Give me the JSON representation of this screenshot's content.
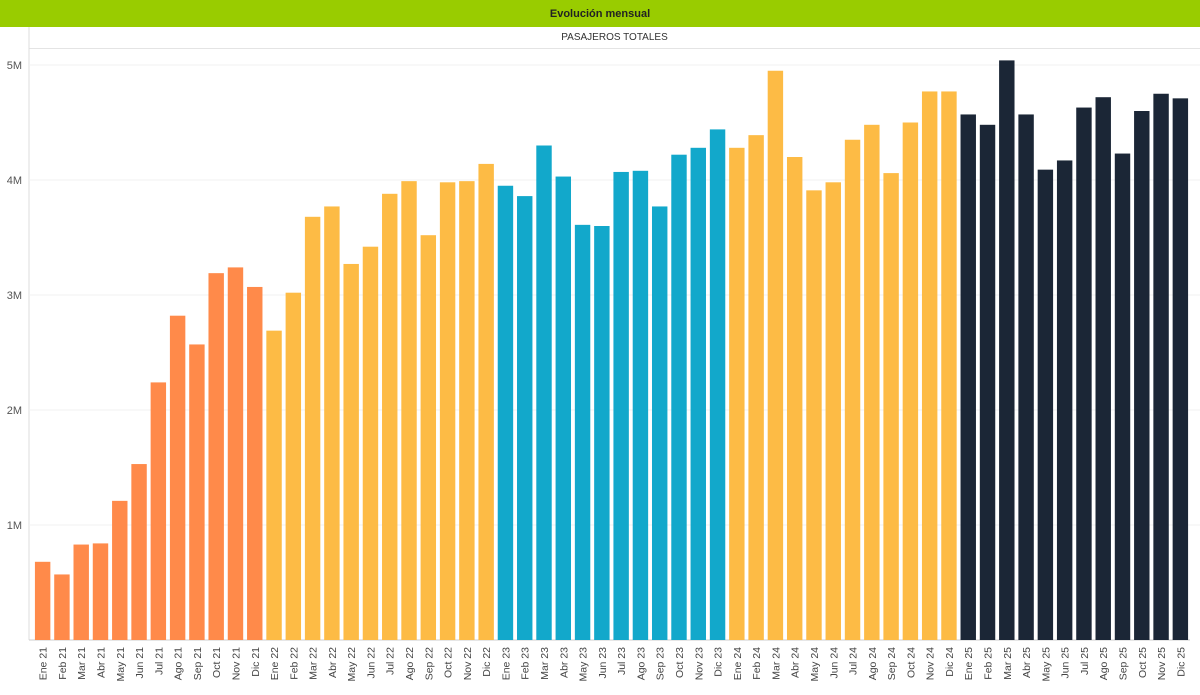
{
  "header": {
    "title": "Evolución mensual"
  },
  "chart_data": {
    "type": "bar",
    "title": "PASAJEROS TOTALES",
    "xlabel": "",
    "ylabel": "",
    "ylim": [
      0,
      5000000
    ],
    "yticks": [
      {
        "v": 1000000,
        "label": "1M"
      },
      {
        "v": 2000000,
        "label": "2M"
      },
      {
        "v": 3000000,
        "label": "3M"
      },
      {
        "v": 4000000,
        "label": "4M"
      },
      {
        "v": 5000000,
        "label": "5M"
      }
    ],
    "grid": true,
    "year_colors": {
      "21": "#ff8a4a",
      "22": "#fdbb45",
      "23": "#12a8cb",
      "24": "#fdbb45",
      "25": "#1b2636"
    },
    "categories": [
      "Ene 21",
      "Feb 21",
      "Mar 21",
      "Abr 21",
      "May 21",
      "Jun 21",
      "Jul 21",
      "Ago 21",
      "Sep 21",
      "Oct 21",
      "Nov 21",
      "Dic 21",
      "Ene 22",
      "Feb 22",
      "Mar 22",
      "Abr 22",
      "May 22",
      "Jun 22",
      "Jul 22",
      "Ago 22",
      "Sep 22",
      "Oct 22",
      "Nov 22",
      "Dic 22",
      "Ene 23",
      "Feb 23",
      "Mar 23",
      "Abr 23",
      "May 23",
      "Jun 23",
      "Jul 23",
      "Ago 23",
      "Sep 23",
      "Oct 23",
      "Nov 23",
      "Dic 23",
      "Ene 24",
      "Feb 24",
      "Mar 24",
      "Abr 24",
      "May 24",
      "Jun 24",
      "Jul 24",
      "Ago 24",
      "Sep 24",
      "Oct 24",
      "Nov 24",
      "Dic 24",
      "Ene 25",
      "Feb 25",
      "Mar 25",
      "Abr 25",
      "May 25",
      "Jun 25",
      "Jul 25",
      "Ago 25",
      "Sep 25",
      "Oct 25",
      "Nov 25",
      "Dic 25"
    ],
    "values": [
      680000,
      570000,
      830000,
      840000,
      1210000,
      1530000,
      2240000,
      2820000,
      2570000,
      3190000,
      3240000,
      3070000,
      2690000,
      3020000,
      3680000,
      3770000,
      3270000,
      3420000,
      3880000,
      3990000,
      3520000,
      3980000,
      3990000,
      4140000,
      3950000,
      3860000,
      4300000,
      4030000,
      3610000,
      3600000,
      4070000,
      4080000,
      3770000,
      4220000,
      4280000,
      4440000,
      4280000,
      4390000,
      4950000,
      4200000,
      3910000,
      3980000,
      4350000,
      4480000,
      4060000,
      4500000,
      4770000,
      4770000,
      4570000,
      4480000,
      5040000,
      4570000,
      4090000,
      4170000,
      4630000,
      4720000,
      4230000,
      4600000,
      4750000,
      4710000
    ]
  }
}
